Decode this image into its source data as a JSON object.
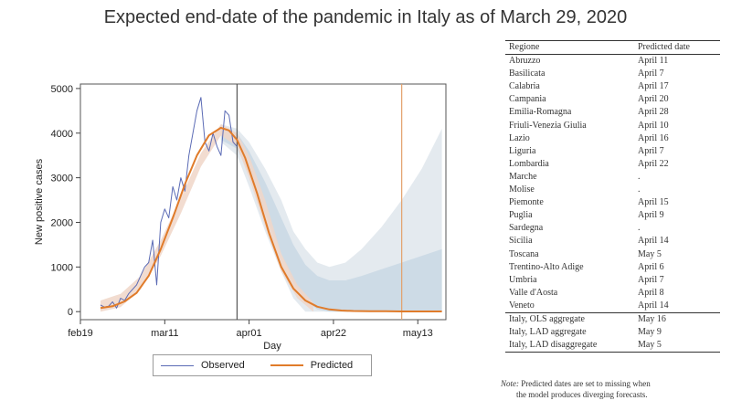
{
  "title": "Expected end-date of the pandemic in Italy as of March 29, 2020",
  "chart_data": {
    "type": "line",
    "xlabel": "Day",
    "ylabel": "New positive cases",
    "x_tick_labels": [
      "feb19",
      "mar11",
      "apr01",
      "apr22",
      "may13"
    ],
    "x_tick_days": [
      0,
      21,
      42,
      63,
      84
    ],
    "y_ticks": [
      0,
      1000,
      2000,
      3000,
      4000,
      5000
    ],
    "xlim": [
      0,
      91
    ],
    "ylim": [
      -180,
      5100
    ],
    "vertical_lines": [
      {
        "day": 39,
        "color": "#555555"
      },
      {
        "day": 80,
        "color": "#e3a06a"
      }
    ],
    "legend": [
      "Observed",
      "Predicted"
    ],
    "series": [
      {
        "name": "Observed",
        "color": "#5b6bb5",
        "x": [
          5,
          6,
          7,
          8,
          9,
          10,
          11,
          12,
          13,
          14,
          15,
          16,
          17,
          18,
          19,
          20,
          21,
          22,
          23,
          24,
          25,
          26,
          27,
          28,
          29,
          30,
          31,
          32,
          33,
          34,
          35,
          36,
          37,
          38,
          39
        ],
        "values": [
          150,
          100,
          120,
          220,
          80,
          300,
          250,
          400,
          500,
          600,
          800,
          1000,
          1100,
          1600,
          600,
          2000,
          2300,
          2100,
          2800,
          2500,
          3000,
          2700,
          3500,
          4000,
          4500,
          4800,
          3800,
          3600,
          4000,
          3700,
          3500,
          4500,
          4400,
          3800,
          3700
        ]
      },
      {
        "name": "Predicted",
        "color": "#e07b2a",
        "x": [
          5,
          8,
          11,
          14,
          17,
          20,
          23,
          26,
          29,
          32,
          35,
          37,
          39,
          41,
          44,
          47,
          50,
          53,
          56,
          59,
          62,
          65,
          68,
          72,
          76,
          80,
          85,
          90
        ],
        "values": [
          80,
          120,
          230,
          420,
          800,
          1400,
          2100,
          2850,
          3500,
          3950,
          4120,
          4060,
          3850,
          3450,
          2650,
          1750,
          1000,
          520,
          250,
          110,
          50,
          25,
          15,
          10,
          8,
          5,
          5,
          5
        ]
      }
    ],
    "confidence_bands": [
      {
        "color": "#dfe6ec",
        "x": [
          35,
          39,
          42,
          46,
          50,
          53,
          56,
          59,
          62,
          66,
          70,
          75,
          80,
          85,
          90
        ],
        "upper": [
          4200,
          4100,
          3800,
          3200,
          2500,
          1800,
          1400,
          1100,
          1000,
          1100,
          1400,
          1900,
          2500,
          3200,
          4100
        ],
        "lower": [
          3800,
          3500,
          2800,
          1800,
          900,
          300,
          0,
          0,
          0,
          0,
          0,
          0,
          0,
          0,
          0
        ]
      },
      {
        "color": "#c9d8e4",
        "x": [
          35,
          39,
          42,
          46,
          50,
          53,
          56,
          59,
          62,
          66,
          70,
          75,
          80,
          85,
          90
        ],
        "upper": [
          4150,
          4000,
          3600,
          2900,
          2100,
          1500,
          1050,
          800,
          700,
          700,
          800,
          950,
          1100,
          1250,
          1400
        ],
        "lower": [
          3850,
          3650,
          3100,
          2200,
          1300,
          650,
          250,
          50,
          0,
          0,
          0,
          0,
          0,
          0,
          0
        ]
      },
      {
        "color": "#f0d6c8",
        "x": [
          5,
          10,
          15,
          20,
          25,
          30,
          35,
          39,
          42,
          46,
          50,
          54,
          58
        ],
        "upper": [
          250,
          400,
          800,
          1600,
          2550,
          3550,
          4200,
          4000,
          3500,
          2500,
          1300,
          600,
          200
        ],
        "lower": [
          0,
          100,
          500,
          1250,
          2200,
          3250,
          3950,
          3700,
          3000,
          1900,
          900,
          300,
          0
        ]
      }
    ]
  },
  "table": {
    "headers": [
      "Regione",
      "Predicted date"
    ],
    "rows": [
      [
        "Abruzzo",
        "April 11"
      ],
      [
        "Basilicata",
        "April 7"
      ],
      [
        "Calabria",
        "April 17"
      ],
      [
        "Campania",
        "April 20"
      ],
      [
        "Emilia-Romagna",
        "April 28"
      ],
      [
        "Friuli-Venezia Giulia",
        "April 10"
      ],
      [
        "Lazio",
        "April 16"
      ],
      [
        "Liguria",
        "April 7"
      ],
      [
        "Lombardia",
        "April 22"
      ],
      [
        "Marche",
        "."
      ],
      [
        "Molise",
        "."
      ],
      [
        "Piemonte",
        "April 15"
      ],
      [
        "Puglia",
        "April 9"
      ],
      [
        "Sardegna",
        "."
      ],
      [
        "Sicilia",
        "April 14"
      ],
      [
        "Toscana",
        "May 5"
      ],
      [
        "Trentino-Alto Adige",
        "April 6"
      ],
      [
        "Umbria",
        "April 7"
      ],
      [
        "Valle d'Aosta",
        "April 8"
      ],
      [
        "Veneto",
        "April 14"
      ]
    ],
    "aggregates": [
      [
        "Italy, OLS aggregate",
        "May 16"
      ],
      [
        "Italy, LAD aggregate",
        "May 9"
      ],
      [
        "Italy, LAD disaggregate",
        "May 5"
      ]
    ]
  },
  "note": {
    "label": "Note:",
    "line1": "Predicted dates are set to missing when",
    "line2": "the model produces diverging forecasts."
  }
}
